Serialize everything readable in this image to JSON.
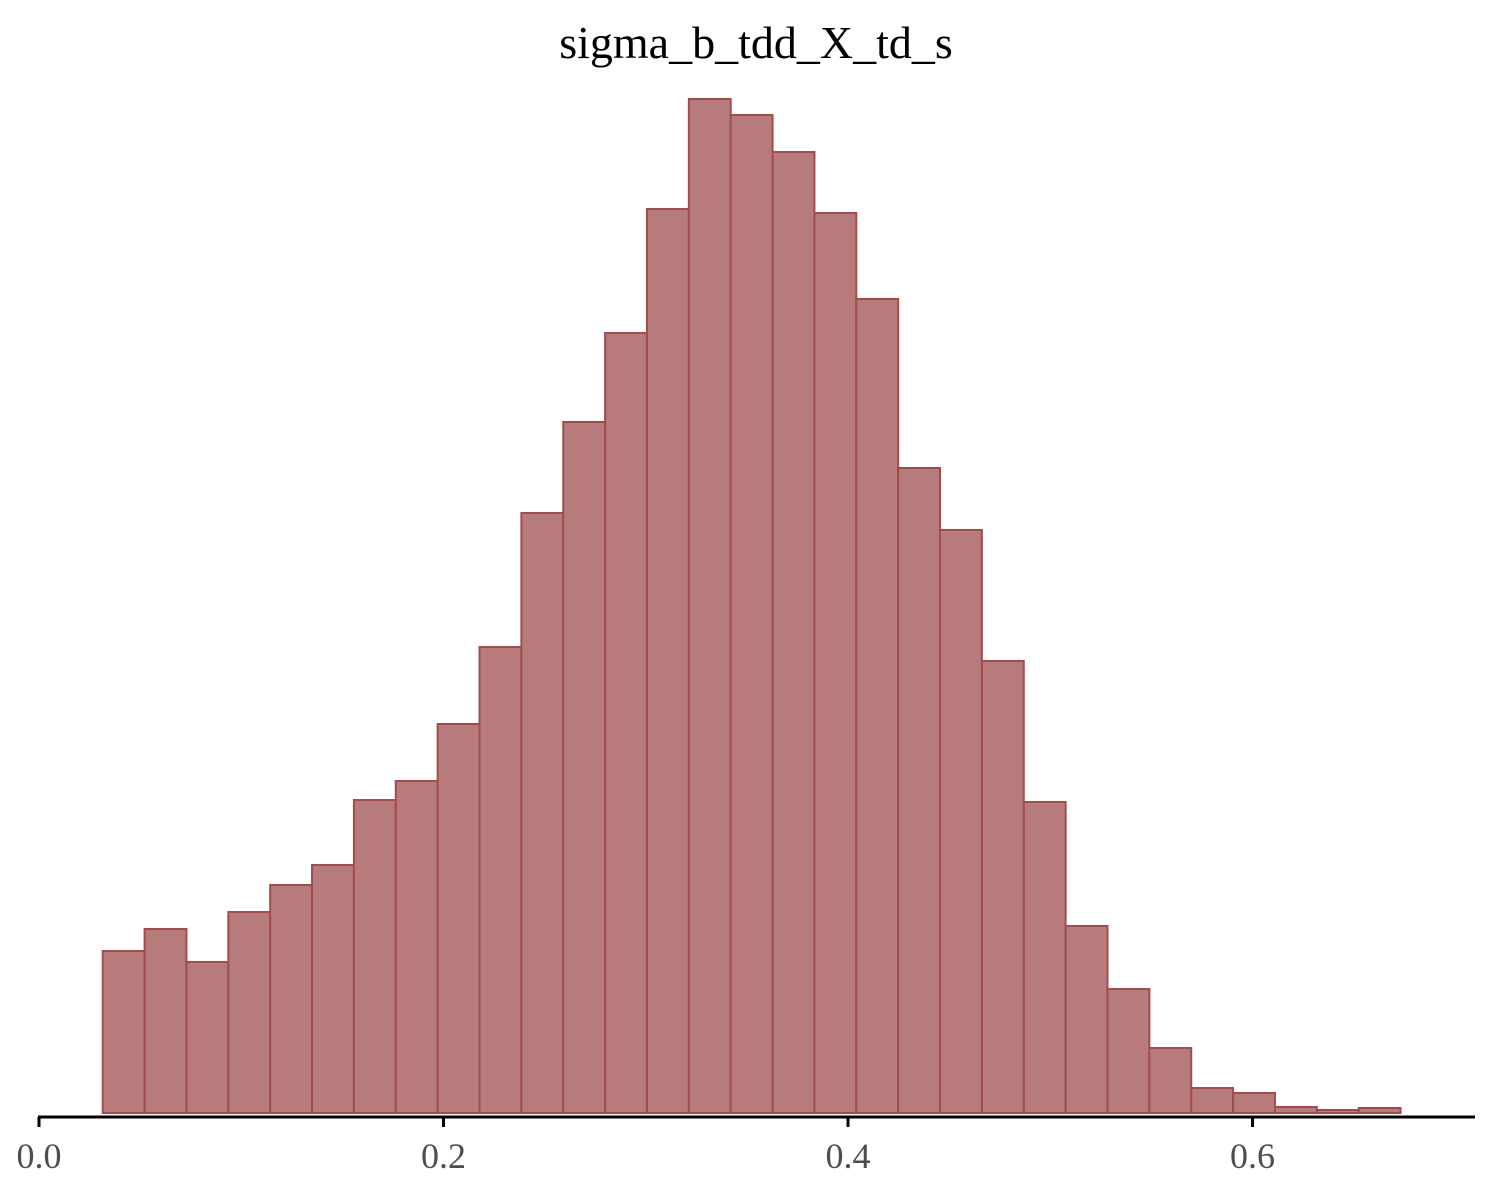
{
  "chart_data": {
    "type": "bar",
    "title": "sigma_b_tdd_X_td_s",
    "xlabel": "",
    "ylabel": "",
    "xlim": [
      0.0,
      0.71
    ],
    "ylim": [
      0,
      1015
    ],
    "x_ticks": [
      0.0,
      0.2,
      0.4,
      0.6
    ],
    "x_tick_labels": [
      "0.0",
      "0.2",
      "0.4",
      "0.6"
    ],
    "y_axis_shown": false,
    "grid": false,
    "bin_edges": [
      0.0315,
      0.0522,
      0.0729,
      0.0936,
      0.1143,
      0.135,
      0.1557,
      0.1764,
      0.1971,
      0.2178,
      0.2385,
      0.2592,
      0.2799,
      0.3006,
      0.3213,
      0.342,
      0.3627,
      0.3834,
      0.4041,
      0.4248,
      0.4455,
      0.4662,
      0.4869,
      0.5076,
      0.5283,
      0.549,
      0.5697,
      0.5904,
      0.6111,
      0.6318,
      0.6525,
      0.6732
    ],
    "values": [
      162,
      184,
      151,
      201,
      228,
      248,
      313,
      332,
      389,
      466,
      600,
      691,
      780,
      904,
      1014,
      998,
      961,
      900,
      814,
      645,
      583,
      452,
      311,
      187,
      124,
      65,
      25,
      20,
      6,
      3,
      5
    ],
    "colors": {
      "bar_fill": "#b77b7b",
      "bar_edge": "#a24c4c",
      "axis": "#000000",
      "tick_text": "#4d4d4d"
    }
  }
}
